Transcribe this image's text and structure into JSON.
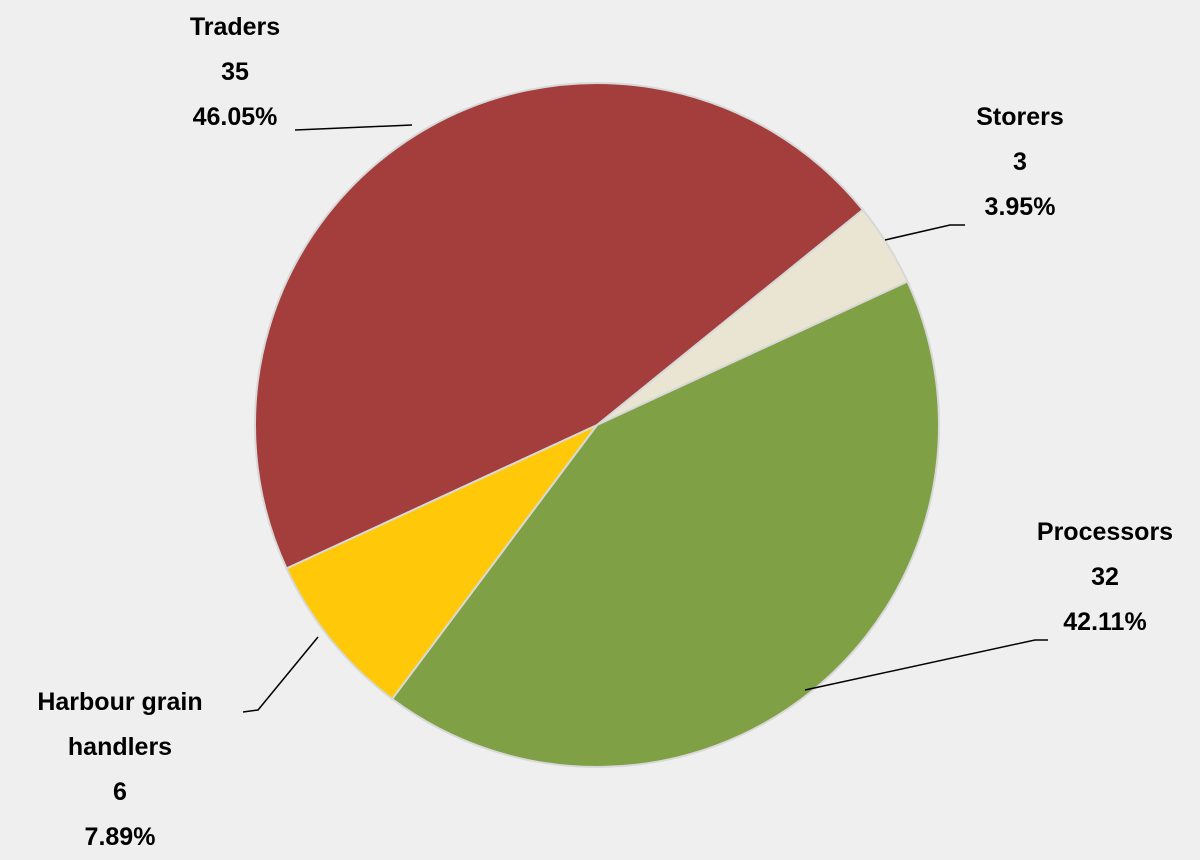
{
  "chart_data": {
    "type": "pie",
    "categories": [
      "Storers",
      "Processors",
      "Harbour grain handlers",
      "Traders"
    ],
    "values": [
      3,
      32,
      6,
      35
    ],
    "value_labels": [
      "3.95%",
      "42.11%",
      "7.89%",
      "46.05%"
    ],
    "colors": [
      "#e9e5d2",
      "#80a045",
      "#ffc90a",
      "#a33e3d"
    ]
  }
}
